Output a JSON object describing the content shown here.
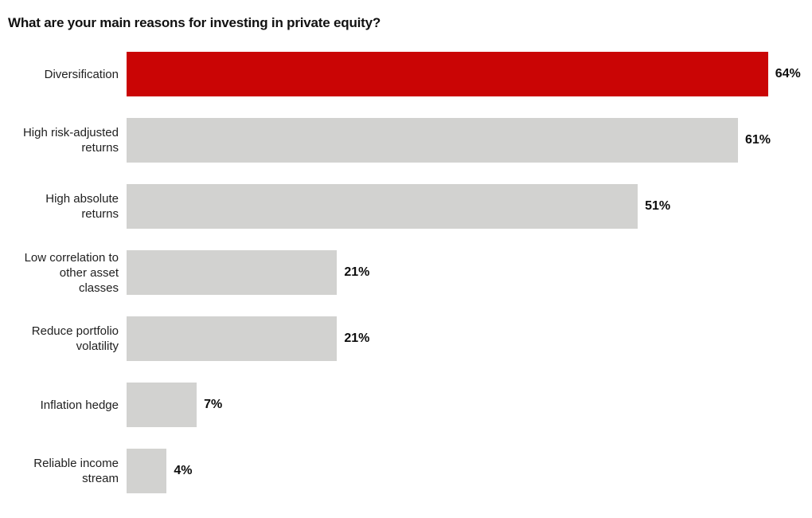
{
  "title": "What are your main reasons for investing in private equity?",
  "colors": {
    "highlight_bar": "#ca0505",
    "default_bar": "#d2d2d0",
    "text": "#1a1a1a"
  },
  "chart_data": {
    "type": "bar",
    "orientation": "horizontal",
    "title": "What are your main reasons for investing in private equity?",
    "categories": [
      "Diversification",
      "High risk-adjusted returns",
      "High absolute returns",
      "Low correlation to other asset classes",
      "Reduce portfolio volatility",
      "Inflation hedge",
      "Reliable income stream"
    ],
    "values": [
      64,
      61,
      51,
      21,
      21,
      7,
      4
    ],
    "unit": "%",
    "data_labels": [
      "64%",
      "61%",
      "51%",
      "21%",
      "21%",
      "7%",
      "4%"
    ],
    "highlighted_category": "Diversification",
    "xlabel": "",
    "ylabel": "",
    "xlim": [
      0,
      68
    ],
    "grid": false,
    "legend": false,
    "bar_color_default": "#d2d2d0",
    "bar_color_highlight": "#ca0505"
  },
  "rows": [
    {
      "label": "Diversification",
      "value": 64,
      "value_label": "64%",
      "highlight": true
    },
    {
      "label": "High risk-adjusted returns",
      "value": 61,
      "value_label": "61%",
      "highlight": false
    },
    {
      "label": "High absolute returns",
      "value": 51,
      "value_label": "51%",
      "highlight": false
    },
    {
      "label": "Low correlation to other asset classes",
      "value": 21,
      "value_label": "21%",
      "highlight": false
    },
    {
      "label": "Reduce portfolio volatility",
      "value": 21,
      "value_label": "21%",
      "highlight": false
    },
    {
      "label": "Inflation hedge",
      "value": 7,
      "value_label": "7%",
      "highlight": false
    },
    {
      "label": "Reliable income stream",
      "value": 4,
      "value_label": "4%",
      "highlight": false
    }
  ]
}
